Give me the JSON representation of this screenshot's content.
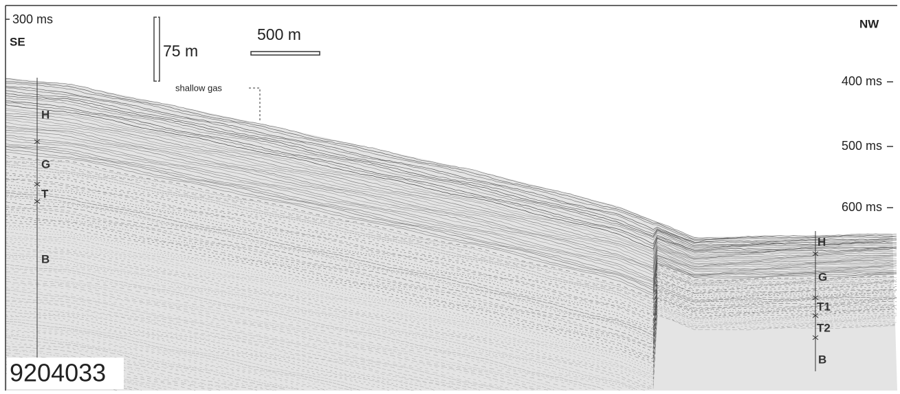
{
  "header": {
    "time_top": "300 ms",
    "left_direction": "SE",
    "right_direction": "NW"
  },
  "scale": {
    "vertical": "75 m",
    "horizontal": "500 m"
  },
  "annotation": "shallow gas",
  "time_labels": [
    "400 ms",
    "500 ms",
    "600 ms"
  ],
  "left_units": [
    "H",
    "G",
    "T",
    "B"
  ],
  "right_units": [
    "H",
    "G",
    "T1",
    "T2",
    "B"
  ],
  "profile_id": "9204033"
}
